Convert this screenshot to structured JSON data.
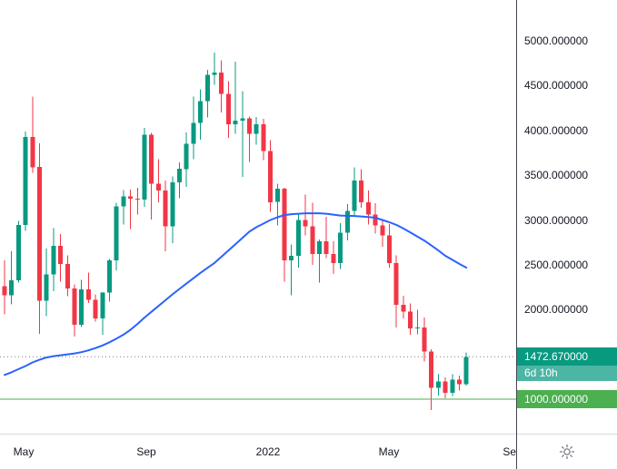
{
  "colors": {
    "up": "#089981",
    "down": "#f23645",
    "ma_line": "#2962ff",
    "hline": "#4caf50",
    "last_price_label_bg": "#089981",
    "countdown_label_bg": "rgba(8,153,129,0.72)",
    "hline_label_bg": "#4caf50",
    "price_line": "#787b86",
    "axis_text": "#131722",
    "icon_gray": "#787b86"
  },
  "price_axis": {
    "tick_labels": [
      "5000.000000",
      "4500.000000",
      "4000.000000",
      "3500.000000",
      "3000.000000",
      "2500.000000",
      "2000.000000"
    ],
    "last_price_label": "1472.670000",
    "countdown_label": "6d 10h",
    "hline_label": "1000.000000"
  },
  "time_axis": {
    "labels": [
      "May",
      "Sep",
      "2022",
      "May",
      "Sep"
    ]
  },
  "icons": {
    "bottom_right": "sun-icon"
  },
  "chart_data": {
    "type": "candlestick",
    "title": "",
    "grid": false,
    "y_ticks": [
      5000,
      4500,
      4000,
      3500,
      3000,
      2500,
      2000
    ],
    "ylim": [
      700,
      5455
    ],
    "horizontal_line": 1000,
    "last_price": 1472.67,
    "countdown": "6d 10h",
    "x_ticks": [
      {
        "label": "May",
        "week_index": 2.7
      },
      {
        "label": "Sep",
        "week_index": 20.3
      },
      {
        "label": "2022",
        "week_index": 37.7
      },
      {
        "label": "May",
        "week_index": 54.9
      },
      {
        "label": "Sep",
        "week_index": 72.6
      }
    ],
    "candles": [
      [
        2260,
        2550,
        1945,
        2160
      ],
      [
        2160,
        2650,
        2060,
        2325
      ],
      [
        2325,
        2990,
        2300,
        2945
      ],
      [
        2945,
        3985,
        2880,
        3925
      ],
      [
        3925,
        4375,
        3525,
        3590
      ],
      [
        3590,
        3855,
        1730,
        2100
      ],
      [
        2100,
        2680,
        1925,
        2390
      ],
      [
        2390,
        2910,
        2205,
        2710
      ],
      [
        2710,
        2845,
        2310,
        2510
      ],
      [
        2510,
        2605,
        2150,
        2235
      ],
      [
        2235,
        2280,
        1700,
        1830
      ],
      [
        1830,
        2330,
        1805,
        2225
      ],
      [
        2225,
        2415,
        2075,
        2110
      ],
      [
        2110,
        2170,
        1865,
        1900
      ],
      [
        1900,
        2195,
        1720,
        2190
      ],
      [
        2190,
        2565,
        2090,
        2550
      ],
      [
        2550,
        3190,
        2440,
        3150
      ],
      [
        3150,
        3335,
        2950,
        3265
      ],
      [
        3265,
        3340,
        2900,
        3240
      ],
      [
        3240,
        3360,
        3060,
        3230
      ],
      [
        3230,
        4030,
        3145,
        3950
      ],
      [
        3950,
        3970,
        3005,
        3405
      ],
      [
        3405,
        3680,
        3200,
        3330
      ],
      [
        3330,
        3440,
        2650,
        2930
      ],
      [
        2930,
        3485,
        2740,
        3420
      ],
      [
        3420,
        3645,
        3245,
        3570
      ],
      [
        3570,
        3975,
        3370,
        3850
      ],
      [
        3850,
        4375,
        3680,
        4085
      ],
      [
        4085,
        4460,
        3895,
        4325
      ],
      [
        4325,
        4675,
        4145,
        4620
      ],
      [
        4620,
        4870,
        4510,
        4645
      ],
      [
        4645,
        4780,
        4200,
        4410
      ],
      [
        4410,
        4550,
        3915,
        4070
      ],
      [
        4070,
        4765,
        3960,
        4110
      ],
      [
        4110,
        4440,
        3480,
        4135
      ],
      [
        4135,
        4155,
        3650,
        3960
      ],
      [
        3960,
        4150,
        3840,
        4070
      ],
      [
        4070,
        4130,
        3670,
        3770
      ],
      [
        3770,
        3890,
        3090,
        3200
      ],
      [
        3200,
        3405,
        2940,
        3350
      ],
      [
        3350,
        3360,
        2310,
        2550
      ],
      [
        2550,
        2725,
        2160,
        2600
      ],
      [
        2600,
        3060,
        2470,
        3000
      ],
      [
        3000,
        3285,
        2830,
        2930
      ],
      [
        2930,
        3190,
        2500,
        2620
      ],
      [
        2620,
        2780,
        2300,
        2760
      ],
      [
        2760,
        3035,
        2575,
        2620
      ],
      [
        2620,
        2760,
        2400,
        2520
      ],
      [
        2520,
        2965,
        2455,
        2860
      ],
      [
        2860,
        3175,
        2770,
        3100
      ],
      [
        3100,
        3585,
        3050,
        3440
      ],
      [
        3440,
        3565,
        3135,
        3200
      ],
      [
        3200,
        3330,
        2950,
        3060
      ],
      [
        3060,
        3185,
        2850,
        2940
      ],
      [
        2940,
        2995,
        2700,
        2830
      ],
      [
        2830,
        2955,
        2470,
        2520
      ],
      [
        2520,
        2605,
        1800,
        2055
      ],
      [
        2055,
        2155,
        1900,
        1975
      ],
      [
        1975,
        2070,
        1720,
        1790
      ],
      [
        1790,
        2000,
        1725,
        1800
      ],
      [
        1800,
        1910,
        1420,
        1530
      ],
      [
        1530,
        1555,
        880,
        1125
      ],
      [
        1125,
        1280,
        1040,
        1195
      ],
      [
        1195,
        1245,
        1010,
        1070
      ],
      [
        1070,
        1280,
        1035,
        1220
      ],
      [
        1220,
        1265,
        1096,
        1165
      ],
      [
        1165,
        1520,
        1150,
        1472.67
      ]
    ],
    "ma_values": [
      1270,
      1300,
      1335,
      1370,
      1410,
      1440,
      1465,
      1480,
      1490,
      1500,
      1510,
      1525,
      1545,
      1570,
      1600,
      1635,
      1675,
      1720,
      1775,
      1840,
      1910,
      1975,
      2040,
      2105,
      2170,
      2230,
      2290,
      2350,
      2410,
      2465,
      2520,
      2590,
      2660,
      2730,
      2800,
      2870,
      2920,
      2960,
      3000,
      3030,
      3055,
      3065,
      3070,
      3075,
      3075,
      3075,
      3070,
      3060,
      3050,
      3047,
      3045,
      3040,
      3032,
      3025,
      3000,
      2975,
      2945,
      2905,
      2860,
      2815,
      2770,
      2715,
      2660,
      2600,
      2555,
      2510,
      2468
    ]
  }
}
